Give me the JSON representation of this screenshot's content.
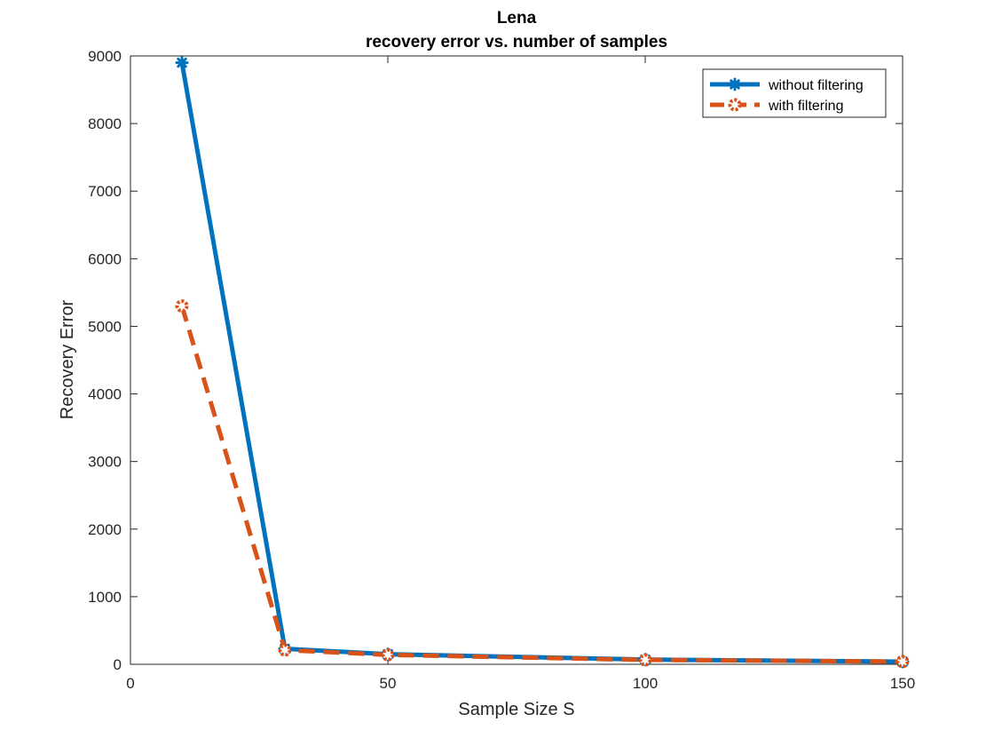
{
  "chart_data": {
    "type": "line",
    "title": "Lena",
    "subtitle": "recovery error vs. number of samples",
    "xlabel": "Sample Size S",
    "ylabel": "Recovery Error",
    "xlim": [
      0,
      150
    ],
    "ylim": [
      0,
      9000
    ],
    "xticks": [
      0,
      50,
      100,
      150
    ],
    "yticks": [
      0,
      1000,
      2000,
      3000,
      4000,
      5000,
      6000,
      7000,
      8000,
      9000
    ],
    "grid": false,
    "legend_position": "top-right",
    "series": [
      {
        "name": "without filtering",
        "color": "#0072BD",
        "line_style": "solid",
        "marker": "asterisk",
        "x": [
          10,
          30,
          50,
          100,
          150
        ],
        "y": [
          8900,
          230,
          150,
          70,
          40
        ]
      },
      {
        "name": "with filtering",
        "color": "#D95319",
        "line_style": "dashed",
        "marker": "circle",
        "x": [
          10,
          30,
          50,
          100,
          150
        ],
        "y": [
          5300,
          210,
          140,
          65,
          40
        ]
      }
    ]
  }
}
